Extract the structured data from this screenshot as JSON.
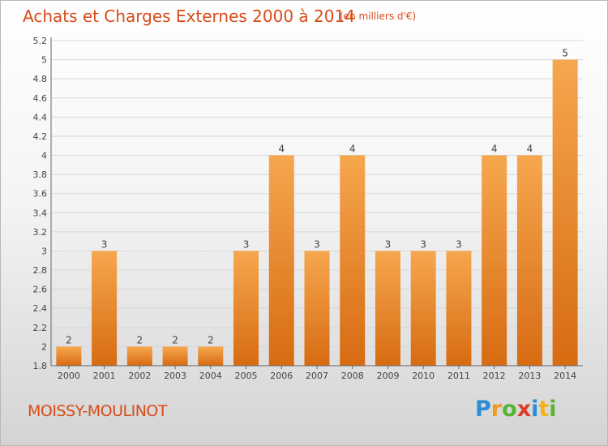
{
  "header": {
    "title": "Achats et Charges Externes 2000 à 2014",
    "subtitle": "(en milliers d'€)"
  },
  "footer": {
    "commune": "MOISSY-MOULINOT",
    "brand_letters": [
      "P",
      "r",
      "o",
      "x",
      "i",
      "t",
      "i"
    ]
  },
  "colors": {
    "title": "#d94a18",
    "bar_light": "#f6a74e",
    "bar_dark": "#d76b12",
    "grid": "#d7d7d7"
  },
  "chart_data": {
    "type": "bar",
    "categories": [
      "2000",
      "2001",
      "2002",
      "2003",
      "2004",
      "2005",
      "2006",
      "2007",
      "2008",
      "2009",
      "2010",
      "2011",
      "2012",
      "2013",
      "2014"
    ],
    "values": [
      2,
      3,
      2,
      2,
      2,
      3,
      4,
      3,
      4,
      3,
      3,
      3,
      4,
      4,
      5
    ],
    "data_labels": [
      "2",
      "3",
      "2",
      "2",
      "2",
      "3",
      "4",
      "3",
      "4",
      "3",
      "3",
      "3",
      "4",
      "4",
      "5"
    ],
    "ylim": [
      1.8,
      5.2
    ],
    "yticks": [
      "1.8",
      "2",
      "2.2",
      "2.4",
      "2.6",
      "2.8",
      "3",
      "3.2",
      "3.4",
      "3.6",
      "3.8",
      "4",
      "4.2",
      "4.4",
      "4.6",
      "4.8",
      "5",
      "5.2"
    ],
    "grid": true,
    "xlabel": "",
    "ylabel": ""
  }
}
